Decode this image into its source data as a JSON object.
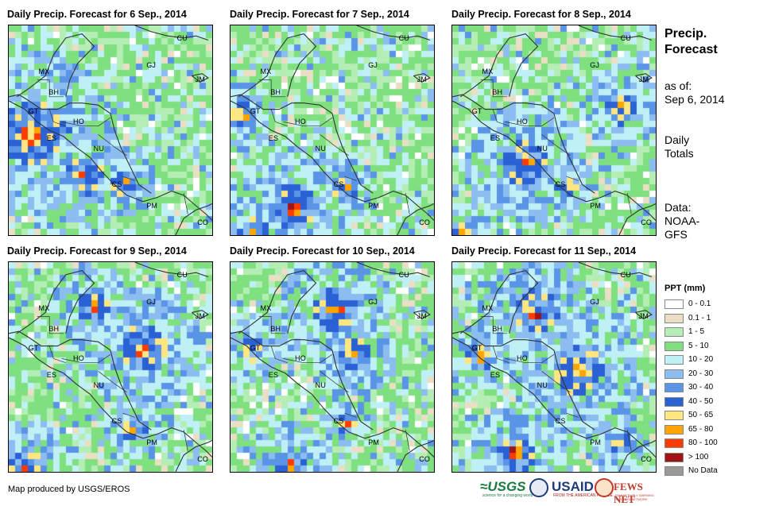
{
  "panels": [
    {
      "title": "Daily Precip. Forecast for 6 Sep., 2014"
    },
    {
      "title": "Daily Precip. Forecast for 7 Sep., 2014"
    },
    {
      "title": "Daily Precip. Forecast for 8 Sep., 2014"
    },
    {
      "title": "Daily Precip. Forecast for 9 Sep., 2014"
    },
    {
      "title": "Daily Precip. Forecast for 10 Sep., 2014"
    },
    {
      "title": "Daily Precip. Forecast for 11 Sep., 2014"
    }
  ],
  "country_labels": [
    "CU",
    "MX",
    "GJ",
    "JM",
    "BH",
    "GT",
    "HO",
    "ES",
    "NU",
    "CS",
    "PM",
    "CO"
  ],
  "side": {
    "title_line1": "Precip.",
    "title_line2": "Forecast",
    "asof_line1": "as of:",
    "asof_line2": "Sep 6, 2014",
    "totals_line1": "Daily",
    "totals_line2": "Totals",
    "data_line1": "Data:",
    "data_line2": "NOAA-",
    "data_line3": "GFS"
  },
  "legend": {
    "title": "PPT (mm)",
    "items": [
      {
        "label": "0 - 0.1",
        "color": "#ffffff"
      },
      {
        "label": "0.1 - 1",
        "color": "#eadfc4"
      },
      {
        "label": "1 - 5",
        "color": "#b4eeb4"
      },
      {
        "label": "5 - 10",
        "color": "#7ee07e"
      },
      {
        "label": "10 - 20",
        "color": "#bff0f5"
      },
      {
        "label": "20 - 30",
        "color": "#8cbdf0"
      },
      {
        "label": "30 - 40",
        "color": "#5a94e6"
      },
      {
        "label": "40 - 50",
        "color": "#2a62d6"
      },
      {
        "label": "50 - 65",
        "color": "#ffe680"
      },
      {
        "label": "65 - 80",
        "color": "#ffa500"
      },
      {
        "label": "80 - 100",
        "color": "#ff3c00"
      },
      {
        "label": "> 100",
        "color": "#a01414"
      },
      {
        "label": "No Data",
        "color": "#9a9a9a"
      }
    ]
  },
  "footer": {
    "credit": "Map produced by USGS/EROS"
  },
  "logos": {
    "usgs": "USGS",
    "usgs_tagline": "science for a changing world",
    "usaid": "USAID",
    "usaid_tagline": "FROM THE AMERICAN PEOPLE",
    "fews": "FEWS NET",
    "fews_tagline": "FAMINE EARLY WARNING SYSTEMS NETWORK"
  }
}
